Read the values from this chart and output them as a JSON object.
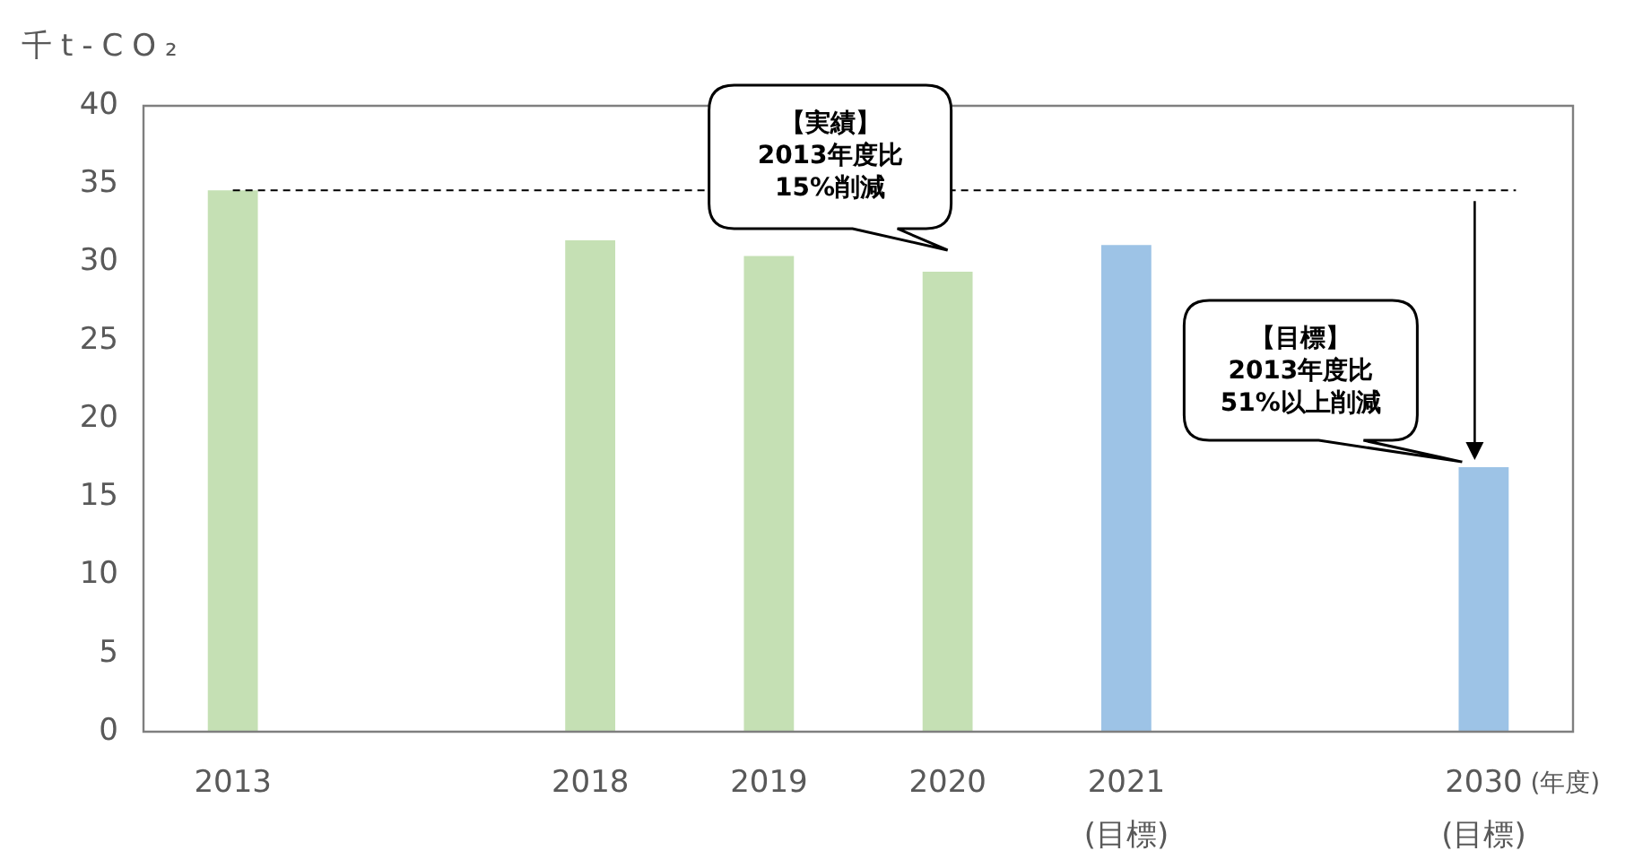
{
  "chart_data": {
    "type": "bar",
    "ylabel": "千t-CO₂",
    "xlabel": "(年度)",
    "categories": [
      "2013",
      null,
      "2018",
      "2019",
      "2020",
      "2021\n(目標)",
      null,
      "2030\n(目標)"
    ],
    "values": [
      34.6,
      null,
      31.4,
      30.4,
      29.4,
      31.1,
      null,
      16.9
    ],
    "colors": [
      "#c5e0b4",
      null,
      "#c5e0b4",
      "#c5e0b4",
      "#c5e0b4",
      "#9dc3e6",
      null,
      "#9dc3e6"
    ],
    "ylim": [
      0,
      40
    ],
    "yticks": [
      0,
      5,
      10,
      15,
      20,
      25,
      30,
      35,
      40
    ],
    "grid": false,
    "legend": false,
    "ref_lines": [
      {
        "axis": "y",
        "value": 34.6,
        "color": "#000000",
        "line_style": "dashed"
      }
    ],
    "annotations": [
      "【実績】\n2013年度比\n15%削減",
      "【目標】\n2013年度比\n51%以上削減"
    ]
  }
}
